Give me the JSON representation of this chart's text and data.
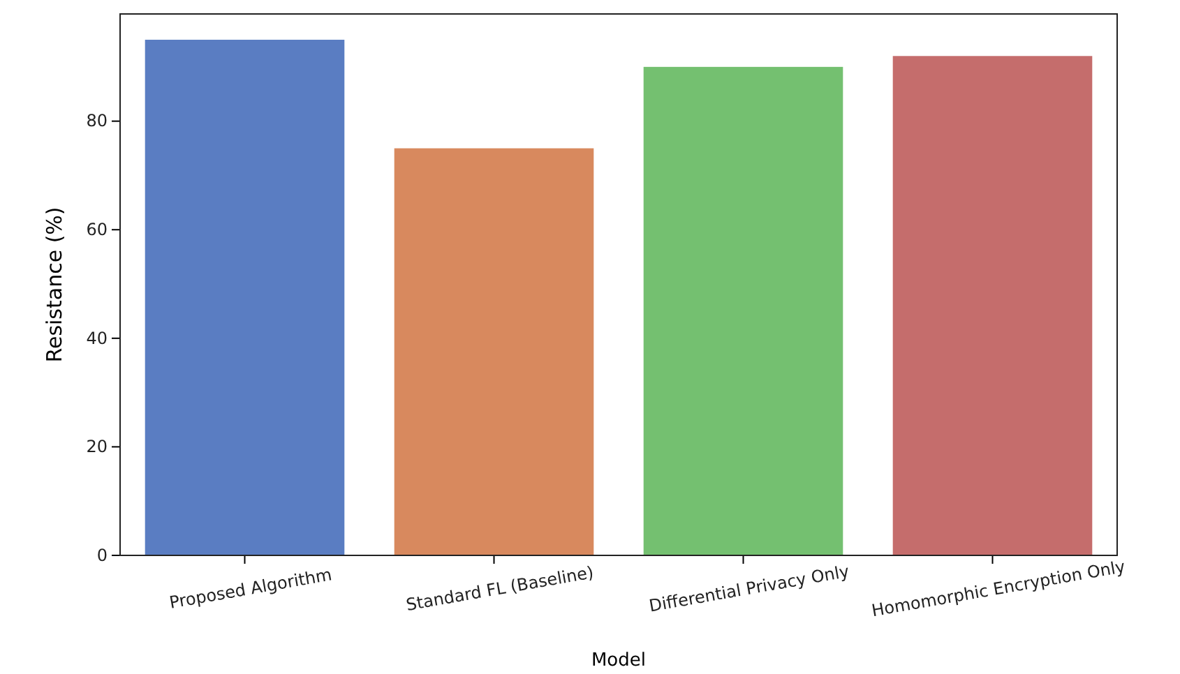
{
  "chart_data": {
    "type": "bar",
    "xlabel": "Model",
    "ylabel": "Resistance (%)",
    "categories": [
      "Proposed Algorithm",
      "Standard FL (Baseline)",
      "Differential Privacy Only",
      "Homomorphic Encryption Only"
    ],
    "values": [
      95,
      75,
      90,
      92
    ],
    "colors": [
      "#5a7dc2",
      "#d8895e",
      "#74c070",
      "#c56d6c"
    ],
    "ylim": [
      0,
      99.75
    ],
    "yticks": [
      0,
      20,
      40,
      60,
      80
    ]
  }
}
